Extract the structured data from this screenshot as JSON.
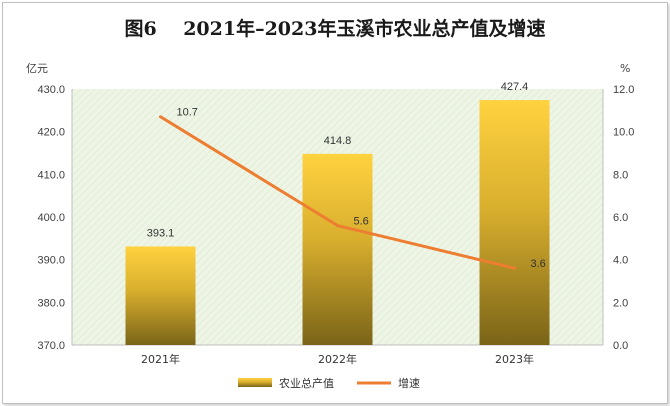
{
  "chart_data": {
    "type": "bar",
    "title": "图6    2021年–2023年玉溪市农业总产值及增速",
    "categories": [
      "2021年",
      "2022年",
      "2023年"
    ],
    "left_axis": {
      "unit": "亿元",
      "range": [
        370,
        430
      ],
      "ticks": [
        "370.0",
        "380.0",
        "390.0",
        "400.0",
        "410.0",
        "420.0",
        "430.0"
      ]
    },
    "right_axis": {
      "unit": "%",
      "range": [
        0,
        12
      ],
      "ticks": [
        "0.0",
        "2.0",
        "4.0",
        "6.0",
        "8.0",
        "10.0",
        "12.0"
      ]
    },
    "series": [
      {
        "name": "农业总产值",
        "type": "bar",
        "axis": "left",
        "values": [
          393.1,
          414.8,
          427.4
        ],
        "labels": [
          "393.1",
          "414.8",
          "427.4"
        ]
      },
      {
        "name": "增速",
        "type": "line",
        "axis": "right",
        "values": [
          10.7,
          5.6,
          3.6
        ],
        "labels": [
          "10.7",
          "5.6",
          "3.6"
        ]
      }
    ],
    "legend_position": "bottom",
    "colors": {
      "bar_top": "#FFD23F",
      "bar_bottom": "#7A6418",
      "line": "#ED7D31",
      "plot_bg": "#EAF3E0"
    }
  }
}
